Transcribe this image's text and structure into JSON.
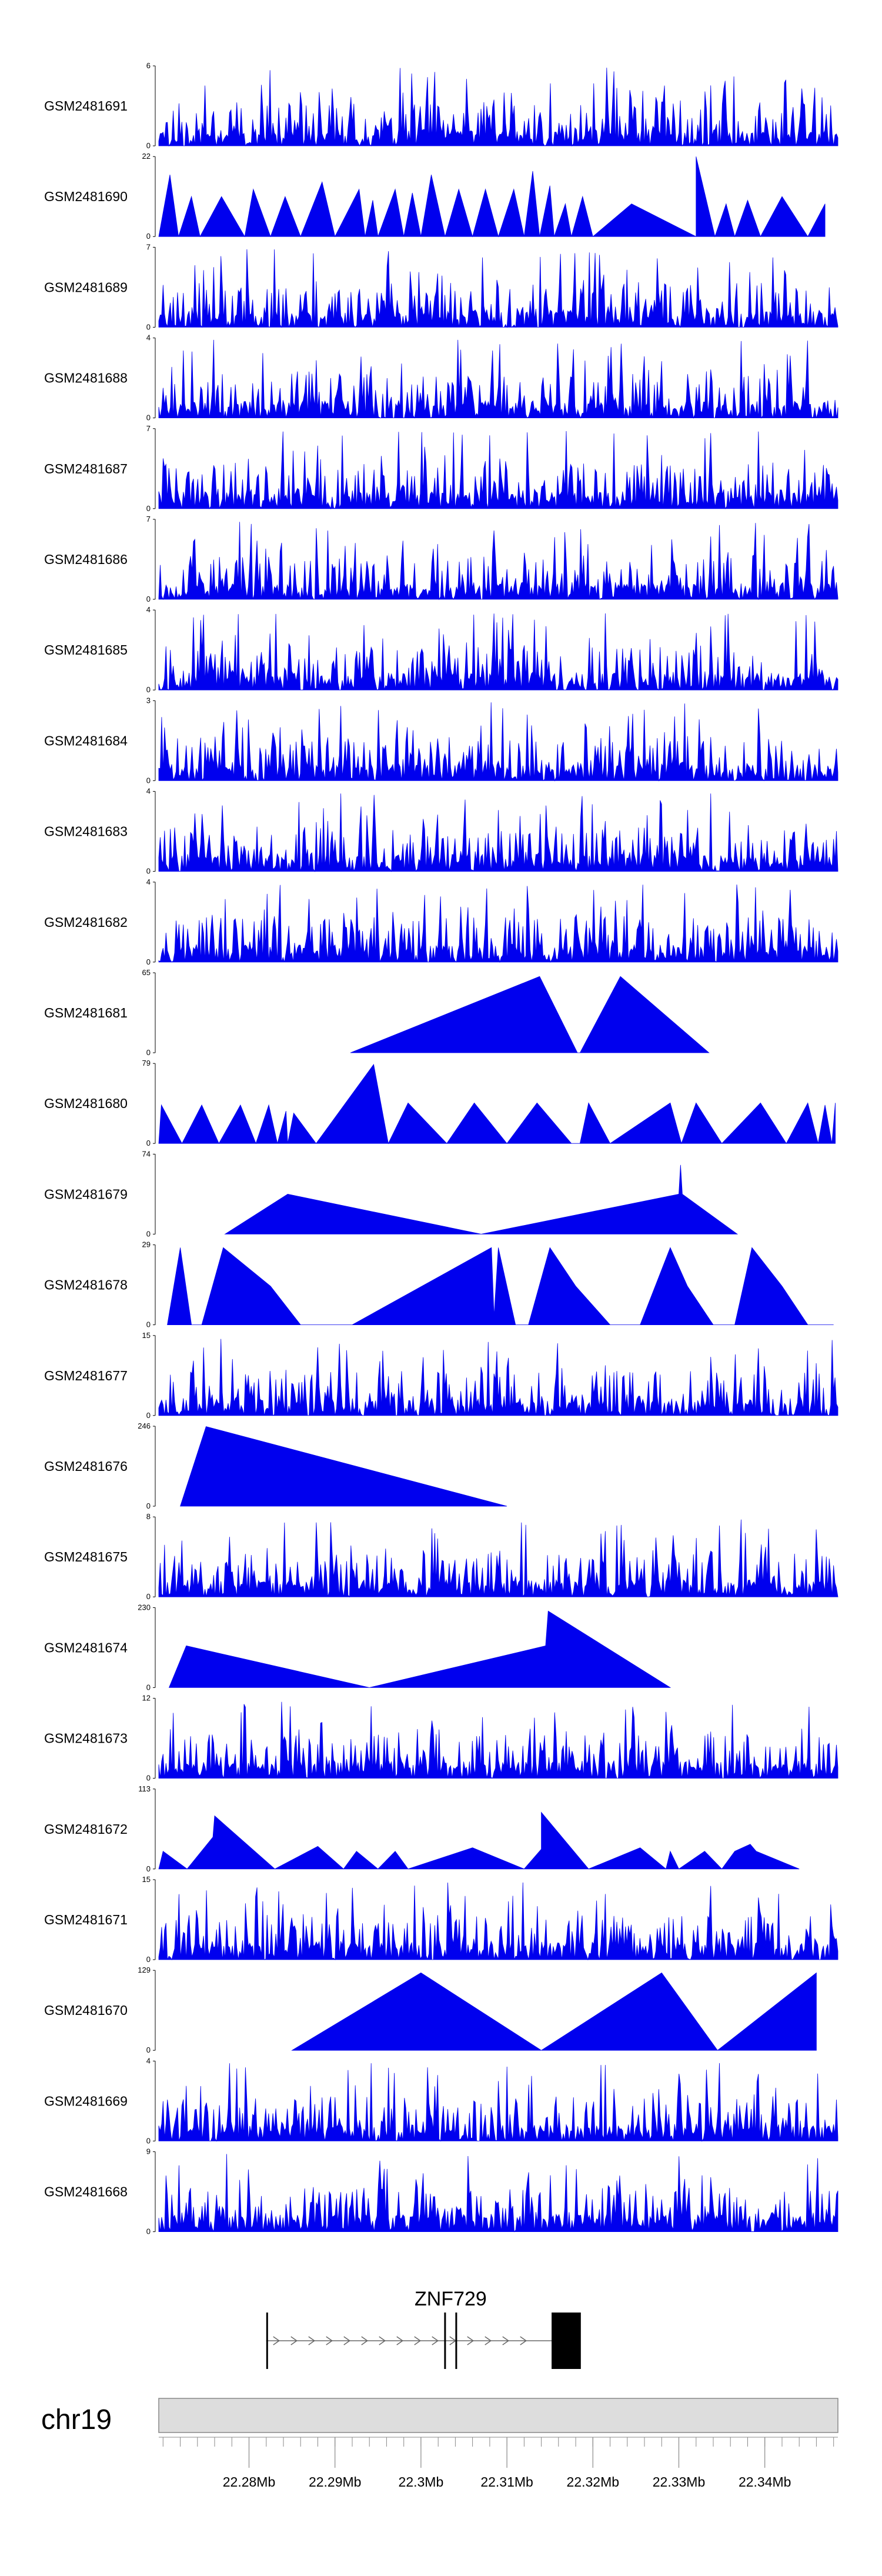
{
  "chart_data": {
    "type": "area",
    "chromosome": "chr19",
    "genome_axis": {
      "xlim": [
        22.2695,
        22.3485
      ],
      "unit": "Mb",
      "major_ticks": [
        22.28,
        22.29,
        22.3,
        22.31,
        22.32,
        22.33,
        22.34
      ],
      "tick_labels": [
        "22.28Mb",
        "22.29Mb",
        "22.3Mb",
        "22.31Mb",
        "22.32Mb",
        "22.33Mb",
        "22.34Mb"
      ],
      "minor_tick_step": 0.002
    },
    "tracks": [
      {
        "name": "GSM2481691",
        "ymax_label": "6",
        "ymin_label": "0",
        "ymax": 6,
        "style": "dense",
        "seed": 11
      },
      {
        "name": "GSM2481690",
        "ymax_label": "22",
        "ymin_label": "0",
        "ymax": 22,
        "x": [
          22.2695,
          22.2708,
          22.2718,
          22.2733,
          22.2743,
          22.2768,
          22.2795,
          22.2805,
          22.2825,
          22.2842,
          22.286,
          22.2885,
          22.29,
          22.2928,
          22.2935,
          22.2944,
          22.295,
          22.297,
          22.298,
          22.299,
          22.3,
          22.3012,
          22.3028,
          22.3044,
          22.306,
          22.3075,
          22.309,
          22.3108,
          22.312,
          22.313,
          22.3138,
          22.315,
          22.3155,
          22.3168,
          22.3175,
          22.3188,
          22.32,
          22.3245,
          22.332,
          22.332,
          22.3342,
          22.3355,
          22.3365,
          22.338,
          22.3395,
          22.342,
          22.345,
          22.347
        ],
        "y": [
          0,
          17,
          0,
          11,
          0,
          11,
          0,
          13,
          0,
          11,
          0,
          15,
          0,
          13,
          0,
          10,
          0,
          13,
          0,
          12,
          0,
          17,
          0,
          13,
          0,
          13,
          0,
          13,
          0,
          18,
          0,
          14,
          0,
          9,
          0,
          11,
          0,
          9,
          0,
          22,
          0,
          9,
          0,
          10,
          0,
          11,
          0,
          9
        ]
      },
      {
        "name": "GSM2481689",
        "ymax_label": "7",
        "ymin_label": "0",
        "ymax": 7,
        "style": "dense",
        "seed": 23
      },
      {
        "name": "GSM2481688",
        "ymax_label": "4",
        "ymin_label": "0",
        "ymax": 4,
        "style": "dense",
        "seed": 37
      },
      {
        "name": "GSM2481687",
        "ymax_label": "7",
        "ymin_label": "0",
        "ymax": 7,
        "style": "dense",
        "seed": 41
      },
      {
        "name": "GSM2481686",
        "ymax_label": "7",
        "ymin_label": "0",
        "ymax": 7,
        "style": "dense",
        "seed": 53
      },
      {
        "name": "GSM2481685",
        "ymax_label": "4",
        "ymin_label": "0",
        "ymax": 4,
        "style": "dense",
        "seed": 67
      },
      {
        "name": "GSM2481684",
        "ymax_label": "3",
        "ymin_label": "0",
        "ymax": 3,
        "style": "dense",
        "seed": 71
      },
      {
        "name": "GSM2481683",
        "ymax_label": "4",
        "ymin_label": "0",
        "ymax": 4,
        "style": "dense",
        "seed": 83
      },
      {
        "name": "GSM2481682",
        "ymax_label": "4",
        "ymin_label": "0",
        "ymax": 4,
        "style": "dense",
        "seed": 97
      },
      {
        "name": "GSM2481681",
        "ymax_label": "65",
        "ymin_label": "0",
        "ymax": 65,
        "x": [
          22.2918,
          22.3138,
          22.3182,
          22.3185,
          22.3232,
          22.3335
        ],
        "y": [
          0,
          62,
          0,
          0,
          62,
          0
        ]
      },
      {
        "name": "GSM2481680",
        "ymax_label": "79",
        "ymin_label": "0",
        "ymax": 79,
        "x": [
          22.2695,
          22.2698,
          22.2722,
          22.2745,
          22.2765,
          22.279,
          22.2808,
          22.2823,
          22.2833,
          22.2843,
          22.2845,
          22.2852,
          22.2878,
          22.2945,
          22.2962,
          22.2985,
          22.303,
          22.3062,
          22.31,
          22.3135,
          22.3175,
          22.3185,
          22.3195,
          22.322,
          22.329,
          22.3303,
          22.332,
          22.335,
          22.3395,
          22.3425,
          22.345,
          22.3462,
          22.347,
          22.3478,
          22.3482
        ],
        "y": [
          0,
          38,
          0,
          38,
          0,
          38,
          0,
          38,
          0,
          32,
          0,
          30,
          0,
          78,
          0,
          40,
          0,
          40,
          0,
          40,
          0,
          0,
          40,
          0,
          40,
          0,
          40,
          0,
          40,
          0,
          40,
          0,
          38,
          0,
          40
        ]
      },
      {
        "name": "GSM2481679",
        "ymax_label": "74",
        "ymin_label": "0",
        "ymax": 74,
        "x": [
          22.2772,
          22.2845,
          22.307,
          22.33,
          22.3302,
          22.3304,
          22.3368
        ],
        "y": [
          0,
          37,
          0,
          37,
          64,
          37,
          0
        ]
      },
      {
        "name": "GSM2481678",
        "ymax_label": "29",
        "ymin_label": "0",
        "ymax": 29,
        "x": [
          22.2705,
          22.272,
          22.2733,
          22.2735,
          22.2745,
          22.277,
          22.2825,
          22.286,
          22.292,
          22.3082,
          22.3085,
          22.309,
          22.311,
          22.3125,
          22.315,
          22.318,
          22.322,
          22.3255,
          22.329,
          22.331,
          22.334,
          22.3365,
          22.3385,
          22.342,
          22.345,
          22.348
        ],
        "y": [
          0,
          28,
          0,
          0,
          0,
          28,
          14,
          0,
          0,
          28,
          3,
          28,
          0,
          0,
          28,
          14,
          0,
          0,
          28,
          14,
          0,
          0,
          28,
          14,
          0,
          0
        ]
      },
      {
        "name": "GSM2481677",
        "ymax_label": "15",
        "ymin_label": "0",
        "ymax": 15,
        "style": "dense",
        "seed": 101
      },
      {
        "name": "GSM2481676",
        "ymax_label": "246",
        "ymin_label": "0",
        "ymax": 246,
        "x": [
          22.272,
          22.275,
          22.31
        ],
        "y": [
          0,
          245,
          0
        ]
      },
      {
        "name": "GSM2481675",
        "ymax_label": "8",
        "ymin_label": "0",
        "ymax": 8,
        "style": "dense",
        "seed": 113
      },
      {
        "name": "GSM2481674",
        "ymax_label": "230",
        "ymin_label": "0",
        "ymax": 230,
        "x": [
          22.2707,
          22.2727,
          22.294,
          22.3145,
          22.3145,
          22.3148,
          22.3148,
          22.329
        ],
        "y": [
          0,
          120,
          0,
          120,
          120,
          220,
          220,
          0
        ]
      },
      {
        "name": "GSM2481673",
        "ymax_label": "12",
        "ymin_label": "0",
        "ymax": 12,
        "style": "dense",
        "seed": 127
      },
      {
        "name": "GSM2481672",
        "ymax_label": "113",
        "ymin_label": "0",
        "ymax": 113,
        "x": [
          22.2695,
          22.27,
          22.2728,
          22.2758,
          22.276,
          22.283,
          22.288,
          22.291,
          22.2925,
          22.295,
          22.297,
          22.2985,
          22.306,
          22.312,
          22.314,
          22.314,
          22.3195,
          22.3255,
          22.3285,
          22.329,
          22.33,
          22.333,
          22.335,
          22.3365,
          22.3383,
          22.339,
          22.344
        ],
        "y": [
          0,
          25,
          0,
          45,
          75,
          0,
          32,
          0,
          25,
          0,
          25,
          0,
          30,
          0,
          28,
          80,
          0,
          30,
          0,
          25,
          0,
          25,
          0,
          25,
          35,
          25,
          0
        ]
      },
      {
        "name": "GSM2481671",
        "ymax_label": "15",
        "ymin_label": "0",
        "ymax": 15,
        "style": "dense",
        "seed": 131
      },
      {
        "name": "GSM2481670",
        "ymax_label": "129",
        "ymin_label": "0",
        "ymax": 129,
        "x": [
          22.285,
          22.3,
          22.314,
          22.314,
          22.328,
          22.3345,
          22.346
        ],
        "y": [
          0,
          125,
          0,
          0,
          125,
          0,
          125
        ]
      },
      {
        "name": "GSM2481669",
        "ymax_label": "4",
        "ymin_label": "0",
        "ymax": 4,
        "style": "dense",
        "seed": 139
      },
      {
        "name": "GSM2481668",
        "ymax_label": "9",
        "ymin_label": "0",
        "ymax": 9,
        "style": "dense",
        "seed": 149
      }
    ],
    "gene_model": {
      "name": "ZNF729",
      "strand": "+",
      "start": 22.282,
      "end": 22.317,
      "exons": [
        {
          "start": 22.282,
          "end": 22.2821
        },
        {
          "start": 22.3027,
          "end": 22.3029
        },
        {
          "start": 22.304,
          "end": 22.3042
        },
        {
          "start": 22.3152,
          "end": 22.3186
        }
      ]
    }
  },
  "colors": {
    "fill": "#0000ee",
    "axis": "#000000",
    "ideogram_fill": "#dddddd",
    "ideogram_stroke": "#888888",
    "gene": "#000000"
  }
}
